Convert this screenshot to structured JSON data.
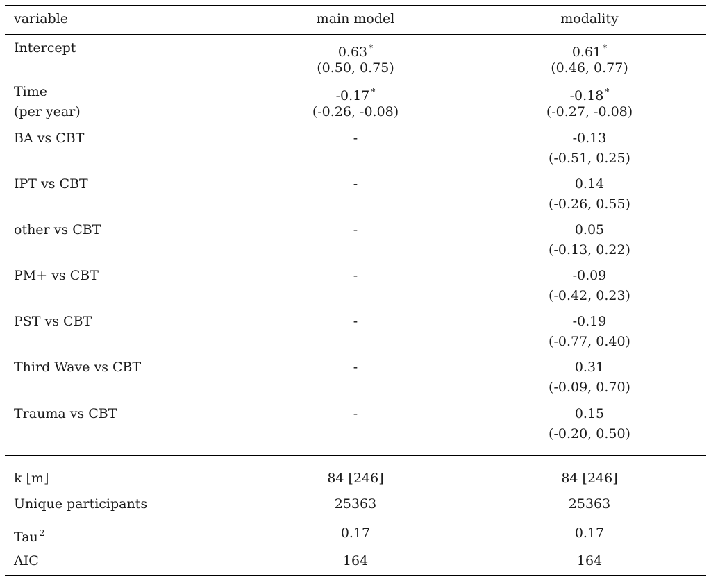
{
  "table": {
    "headers": [
      "variable",
      "main model",
      "modality"
    ],
    "rows": [
      {
        "label": [
          "Intercept"
        ],
        "main": [
          "0.63",
          "(0.50, 0.75)"
        ],
        "main_sig": true,
        "modality": [
          "0.61",
          "(0.46, 0.77)"
        ],
        "modality_sig": true
      },
      {
        "label": [
          "Time",
          "(per year)"
        ],
        "main": [
          "-0.17",
          "(-0.26, -0.08)"
        ],
        "main_sig": true,
        "modality": [
          "-0.18",
          "(-0.27, -0.08)"
        ],
        "modality_sig": true
      },
      {
        "label": [
          "BA vs CBT"
        ],
        "main": [
          "-"
        ],
        "main_sig": false,
        "modality": [
          "-0.13",
          "(-0.51, 0.25)"
        ],
        "modality_sig": false
      },
      {
        "label": [
          "IPT vs CBT"
        ],
        "main": [
          "-"
        ],
        "main_sig": false,
        "modality": [
          "0.14",
          "(-0.26, 0.55)"
        ],
        "modality_sig": false
      },
      {
        "label": [
          "other vs CBT"
        ],
        "main": [
          "-"
        ],
        "main_sig": false,
        "modality": [
          "0.05",
          "(-0.13, 0.22)"
        ],
        "modality_sig": false
      },
      {
        "label": [
          "PM+ vs CBT"
        ],
        "main": [
          "-"
        ],
        "main_sig": false,
        "modality": [
          "-0.09",
          "(-0.42, 0.23)"
        ],
        "modality_sig": false
      },
      {
        "label": [
          "PST vs CBT"
        ],
        "main": [
          "-"
        ],
        "main_sig": false,
        "modality": [
          "-0.19",
          "(-0.77, 0.40)"
        ],
        "modality_sig": false
      },
      {
        "label": [
          "Third Wave vs CBT"
        ],
        "main": [
          "-"
        ],
        "main_sig": false,
        "modality": [
          "0.31",
          "(-0.09, 0.70)"
        ],
        "modality_sig": false
      },
      {
        "label": [
          "Trauma vs CBT"
        ],
        "main": [
          "-"
        ],
        "main_sig": false,
        "modality": [
          "0.15",
          "(-0.20, 0.50)"
        ],
        "modality_sig": false
      }
    ],
    "stats": [
      {
        "label": "k [m]",
        "main": "84 [246]",
        "modality": "84 [246]"
      },
      {
        "label": "Unique participants",
        "main": "25363",
        "modality": "25363"
      },
      {
        "label": "Tau",
        "label_sup": "2",
        "main": "0.17",
        "modality": "0.17"
      },
      {
        "label": "AIC",
        "main": "164",
        "modality": "164"
      }
    ],
    "significance_marker": "*"
  }
}
